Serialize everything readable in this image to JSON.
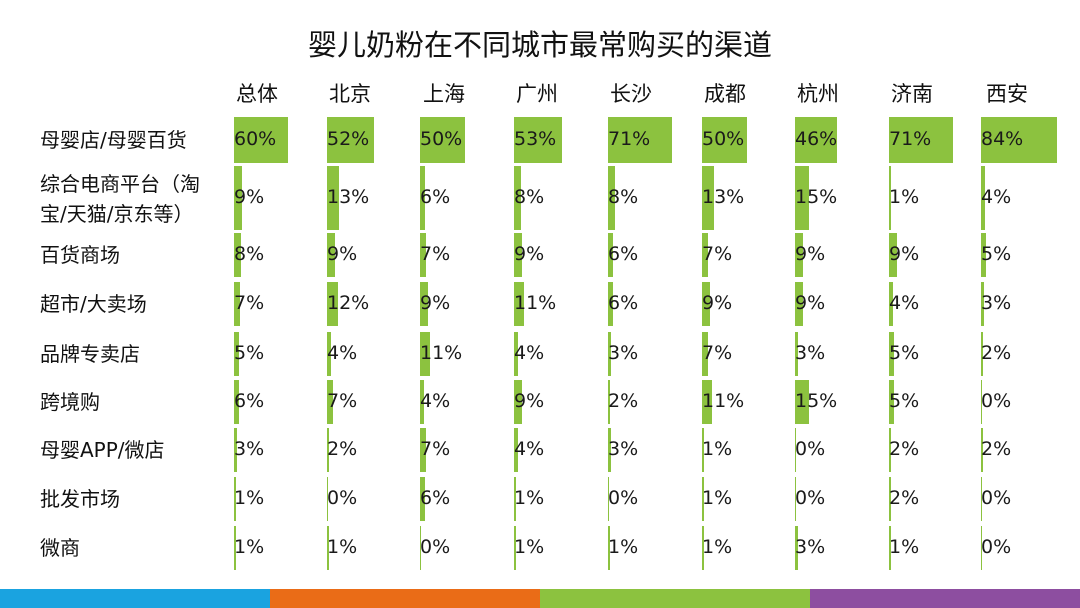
{
  "chart_data": {
    "type": "table",
    "title": "婴儿奶粉在不同城市最常购买的渠道",
    "columns": [
      "总体",
      "北京",
      "上海",
      "广州",
      "长沙",
      "成都",
      "杭州",
      "济南",
      "西安"
    ],
    "rows": [
      {
        "label": "母婴店/母婴百货",
        "values": [
          60,
          52,
          50,
          53,
          71,
          50,
          46,
          71,
          84
        ]
      },
      {
        "label": "综合电商平台（淘宝/天猫/京东等）",
        "label_lines": [
          "综合电商平台（淘",
          "宝/天猫/京东等）"
        ],
        "values": [
          9,
          13,
          6,
          8,
          8,
          13,
          15,
          1,
          4
        ]
      },
      {
        "label": "百货商场",
        "values": [
          8,
          9,
          7,
          9,
          6,
          7,
          9,
          9,
          5
        ]
      },
      {
        "label": "超市/大卖场",
        "values": [
          7,
          12,
          9,
          11,
          6,
          9,
          9,
          4,
          3
        ]
      },
      {
        "label": "品牌专卖店",
        "values": [
          5,
          4,
          11,
          4,
          3,
          7,
          3,
          5,
          2
        ]
      },
      {
        "label": "跨境购",
        "values": [
          6,
          7,
          4,
          9,
          2,
          11,
          15,
          5,
          0
        ]
      },
      {
        "label": "母婴APP/微店",
        "values": [
          3,
          2,
          7,
          4,
          3,
          1,
          0,
          2,
          2
        ]
      },
      {
        "label": "批发市场",
        "values": [
          1,
          0,
          6,
          1,
          0,
          1,
          0,
          2,
          0
        ]
      },
      {
        "label": "微商",
        "values": [
          1,
          1,
          0,
          1,
          1,
          1,
          3,
          1,
          0
        ]
      }
    ],
    "unit": "%",
    "bar_scale_max": 84,
    "bar_color": "#8cc23f"
  },
  "colors": {
    "bar": "#8cc23f",
    "text": "#1a1a1a",
    "stripe": [
      "#1aa3e0",
      "#ea6c17",
      "#8cc23f",
      "#8d4ea0"
    ]
  }
}
